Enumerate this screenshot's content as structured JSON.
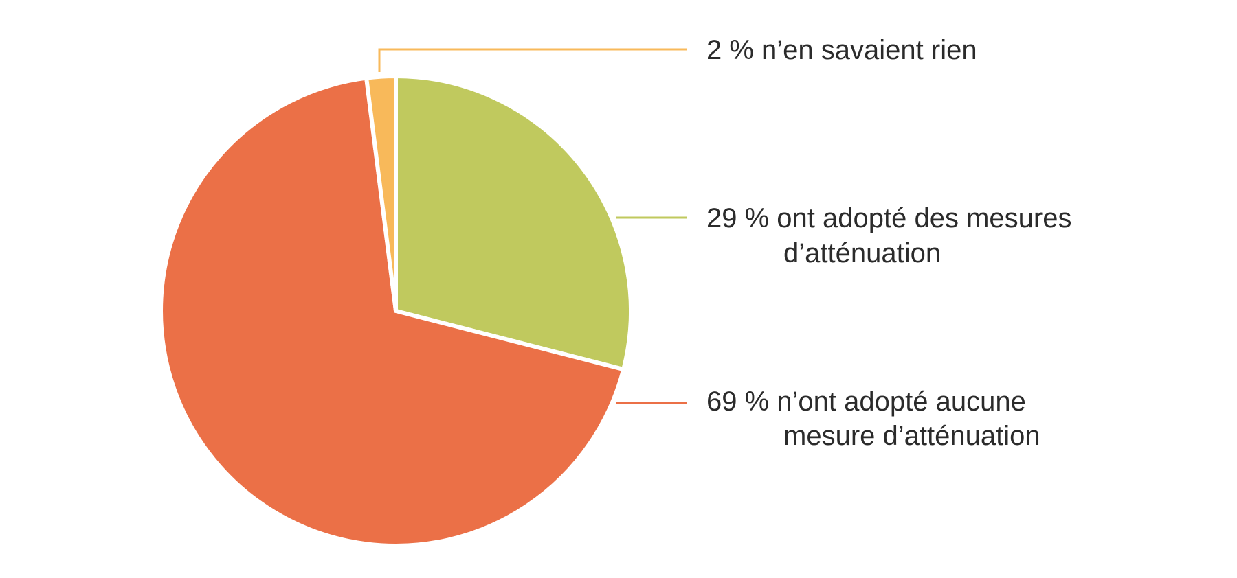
{
  "chart_data": {
    "type": "pie",
    "start_angle_deg": 0,
    "direction": "clockwise",
    "slices": [
      {
        "key": "adopted",
        "value": 29,
        "color": "#c0c95e",
        "label_lines": [
          "29 % ont adopté des mesures",
          "d’atténuation"
        ]
      },
      {
        "key": "none",
        "value": 69,
        "color": "#eb7047",
        "label_lines": [
          "69 % n’ont adopté aucune",
          "mesure d’atténuation"
        ]
      },
      {
        "key": "unaware",
        "value": 2,
        "color": "#f8b95a",
        "label_lines": [
          "2 % n’en savaient rien"
        ]
      }
    ],
    "legend_position": "right",
    "leader_line_colors": {
      "unaware": "#f8b95a",
      "adopted": "#c0c95e",
      "none": "#eb7047"
    }
  }
}
